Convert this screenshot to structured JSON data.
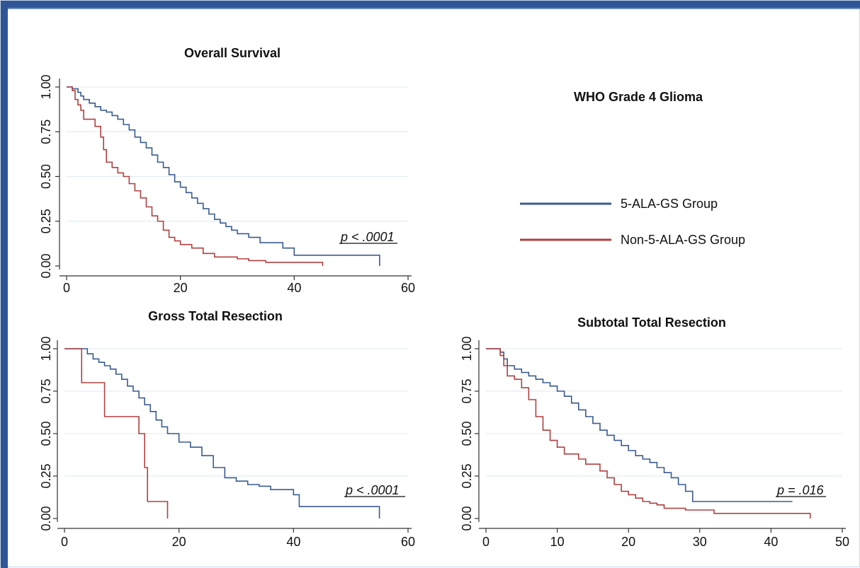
{
  "figure": {
    "main_title": "WHO Grade 4 Glioma",
    "legend": [
      {
        "label": "5-ALA-GS Group",
        "color": "#3a5b8f"
      },
      {
        "label": "Non-5-ALA-GS Group",
        "color": "#b04040"
      }
    ]
  },
  "chart_data": [
    {
      "type": "line",
      "title": "Overall Survival",
      "xlabel": "",
      "ylabel": "",
      "xlim": [
        0,
        60
      ],
      "ylim": [
        0,
        1
      ],
      "x_ticks": [
        "0",
        "20",
        "40",
        "60"
      ],
      "y_ticks": [
        "0.00",
        "0.25",
        "0.50",
        "0.75",
        "1.00"
      ],
      "grid": true,
      "annotation": "p < .0001",
      "series": [
        {
          "name": "5-ALA-GS Group",
          "color": "#3a5b8f",
          "step": true,
          "x": [
            0,
            1,
            2,
            2.5,
            3,
            4,
            5,
            6,
            7,
            8,
            9,
            10,
            11,
            12,
            13,
            14,
            15,
            16,
            17,
            18,
            19,
            20,
            21,
            22,
            23,
            24,
            25,
            26,
            27,
            28,
            29,
            30,
            32,
            34,
            36,
            38,
            40,
            45,
            50,
            55,
            55
          ],
          "y": [
            1,
            0.99,
            0.97,
            0.95,
            0.93,
            0.91,
            0.89,
            0.87,
            0.86,
            0.84,
            0.82,
            0.79,
            0.76,
            0.72,
            0.69,
            0.66,
            0.62,
            0.58,
            0.55,
            0.51,
            0.47,
            0.44,
            0.41,
            0.38,
            0.35,
            0.32,
            0.29,
            0.26,
            0.24,
            0.22,
            0.2,
            0.18,
            0.16,
            0.13,
            0.13,
            0.1,
            0.06,
            0.06,
            0.06,
            0.06,
            0
          ]
        },
        {
          "name": "Non-5-ALA-GS Group",
          "color": "#b04040",
          "step": true,
          "x": [
            0,
            1,
            1.5,
            2,
            2.5,
            3,
            5,
            6,
            6.5,
            7,
            8,
            9,
            10,
            11,
            12,
            13,
            14,
            15,
            16,
            17,
            18,
            19,
            20,
            22,
            24,
            26,
            28,
            30,
            32,
            35,
            40,
            45,
            45
          ],
          "y": [
            1,
            0.98,
            0.93,
            0.9,
            0.87,
            0.82,
            0.78,
            0.72,
            0.65,
            0.58,
            0.55,
            0.52,
            0.5,
            0.46,
            0.42,
            0.38,
            0.33,
            0.28,
            0.25,
            0.2,
            0.16,
            0.14,
            0.12,
            0.1,
            0.07,
            0.05,
            0.05,
            0.04,
            0.03,
            0.02,
            0.02,
            0.02,
            0
          ]
        }
      ]
    },
    {
      "type": "line",
      "title": "Gross Total Resection",
      "xlabel": "",
      "ylabel": "",
      "xlim": [
        0,
        60
      ],
      "ylim": [
        0,
        1
      ],
      "x_ticks": [
        "0",
        "20",
        "40",
        "60"
      ],
      "y_ticks": [
        "0.00",
        "0.25",
        "0.50",
        "0.75",
        "1.00"
      ],
      "grid": true,
      "annotation": "p < .0001",
      "series": [
        {
          "name": "5-ALA-GS Group",
          "color": "#3a5b8f",
          "step": true,
          "x": [
            0,
            2,
            3,
            4,
            5,
            6,
            7,
            8,
            9,
            10,
            11,
            12,
            13,
            14,
            15,
            16,
            17,
            18,
            20,
            22,
            24,
            26,
            28,
            30,
            32,
            34,
            36,
            38,
            40,
            41,
            45,
            50,
            55,
            55
          ],
          "y": [
            1,
            1,
            1,
            0.97,
            0.94,
            0.92,
            0.9,
            0.88,
            0.85,
            0.82,
            0.78,
            0.75,
            0.71,
            0.67,
            0.63,
            0.58,
            0.54,
            0.5,
            0.45,
            0.42,
            0.37,
            0.3,
            0.24,
            0.22,
            0.2,
            0.19,
            0.17,
            0.17,
            0.14,
            0.07,
            0.07,
            0.07,
            0.07,
            0
          ]
        },
        {
          "name": "Non-5-ALA-GS Group",
          "color": "#b04040",
          "step": true,
          "x": [
            0,
            2,
            3,
            5,
            7,
            10,
            13,
            14,
            14.5,
            16,
            18,
            18
          ],
          "y": [
            1,
            1,
            0.8,
            0.8,
            0.6,
            0.6,
            0.5,
            0.3,
            0.1,
            0.1,
            0.1,
            0
          ]
        }
      ]
    },
    {
      "type": "line",
      "title": "Subtotal Total Resection",
      "xlabel": "",
      "ylabel": "",
      "xlim": [
        0,
        50
      ],
      "ylim": [
        0,
        1
      ],
      "x_ticks": [
        "0",
        "10",
        "20",
        "30",
        "40",
        "50"
      ],
      "y_ticks": [
        "0.00",
        "0.25",
        "0.50",
        "0.75",
        "1.00"
      ],
      "grid": true,
      "annotation": "p = .016",
      "series": [
        {
          "name": "5-ALA-GS Group",
          "color": "#3a5b8f",
          "step": true,
          "x": [
            0,
            1,
            2,
            2.5,
            3,
            4,
            5,
            6,
            7,
            8,
            9,
            10,
            11,
            12,
            13,
            14,
            15,
            16,
            17,
            18,
            19,
            20,
            21,
            22,
            23,
            24,
            25,
            26,
            27,
            28,
            29,
            30,
            35,
            40,
            43
          ],
          "y": [
            1,
            1,
            0.98,
            0.94,
            0.9,
            0.88,
            0.86,
            0.84,
            0.82,
            0.8,
            0.78,
            0.75,
            0.72,
            0.68,
            0.64,
            0.6,
            0.56,
            0.52,
            0.49,
            0.46,
            0.43,
            0.4,
            0.37,
            0.35,
            0.33,
            0.3,
            0.27,
            0.24,
            0.2,
            0.16,
            0.1,
            0.1,
            0.1,
            0.1,
            0.1
          ]
        },
        {
          "name": "Non-5-ALA-GS Group",
          "color": "#b04040",
          "step": true,
          "x": [
            0,
            1,
            2,
            2.5,
            3,
            4,
            5,
            6,
            7,
            8,
            9,
            10,
            11,
            12,
            13,
            14,
            15,
            16,
            17,
            18,
            19,
            20,
            21,
            22,
            23,
            24,
            25,
            26,
            28,
            30,
            32,
            35,
            40,
            45,
            45.5,
            45.5
          ],
          "y": [
            1,
            1,
            0.96,
            0.9,
            0.84,
            0.82,
            0.77,
            0.7,
            0.6,
            0.52,
            0.46,
            0.42,
            0.38,
            0.38,
            0.35,
            0.32,
            0.32,
            0.28,
            0.24,
            0.2,
            0.16,
            0.14,
            0.12,
            0.1,
            0.09,
            0.08,
            0.06,
            0.06,
            0.05,
            0.05,
            0.03,
            0.03,
            0.03,
            0.03,
            0.03,
            0
          ]
        }
      ]
    }
  ]
}
